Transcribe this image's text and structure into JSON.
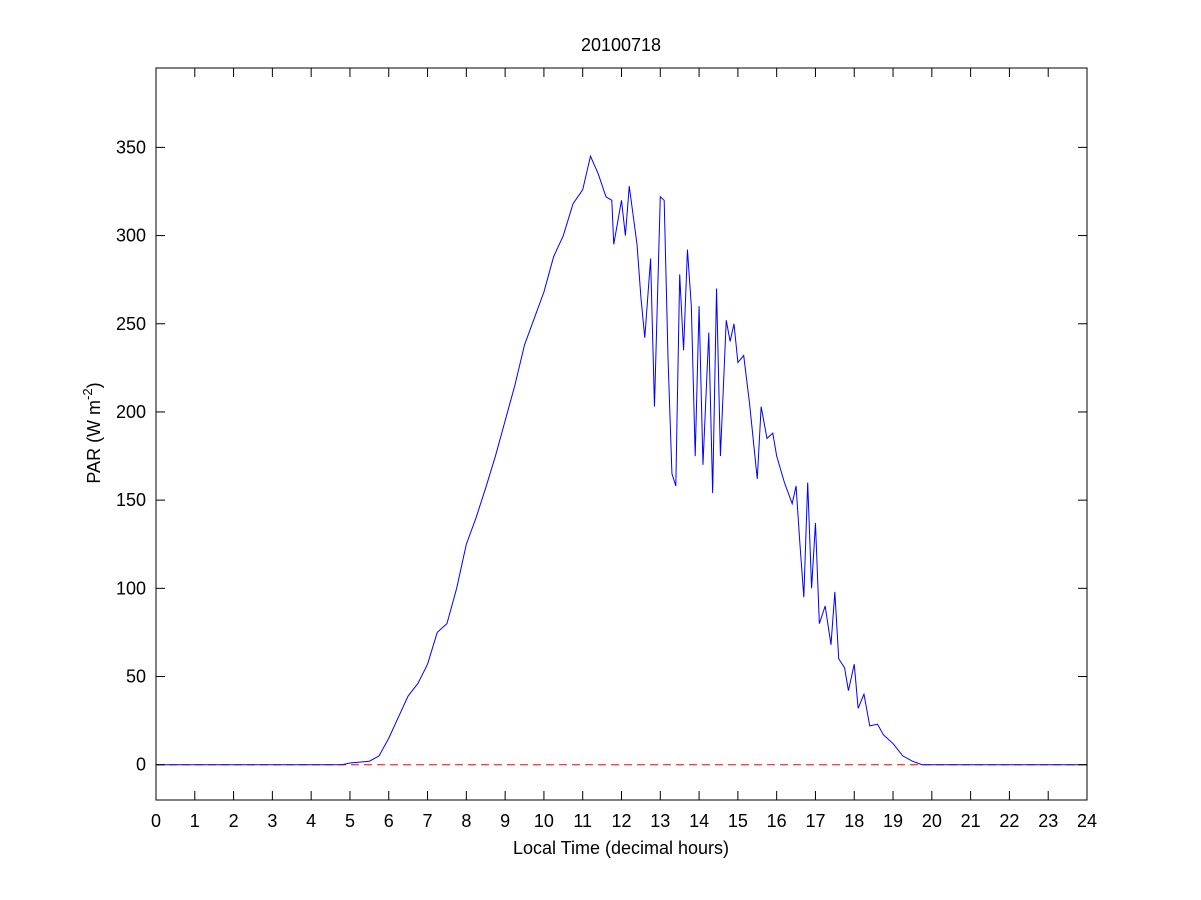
{
  "chart_data": {
    "type": "line",
    "title": "20100718",
    "xlabel": "Local Time (decimal hours)",
    "ylabel": {
      "text": "PAR (W m",
      "superscript": "-2",
      "suffix": ")"
    },
    "x": [
      0,
      4.8,
      5.0,
      5.5,
      5.75,
      6.0,
      6.25,
      6.5,
      6.75,
      7.0,
      7.25,
      7.5,
      7.75,
      8.0,
      8.25,
      8.5,
      8.75,
      9.0,
      9.25,
      9.5,
      9.75,
      10.0,
      10.25,
      10.5,
      10.75,
      11.0,
      11.2,
      11.4,
      11.6,
      11.75,
      11.8,
      12.0,
      12.1,
      12.2,
      12.4,
      12.5,
      12.6,
      12.75,
      12.85,
      13.0,
      13.1,
      13.2,
      13.3,
      13.4,
      13.5,
      13.6,
      13.7,
      13.8,
      13.9,
      14.0,
      14.1,
      14.25,
      14.35,
      14.45,
      14.55,
      14.7,
      14.8,
      14.9,
      15.0,
      15.15,
      15.3,
      15.5,
      15.6,
      15.75,
      15.9,
      16.0,
      16.2,
      16.4,
      16.5,
      16.6,
      16.7,
      16.8,
      16.9,
      17.0,
      17.1,
      17.25,
      17.4,
      17.5,
      17.6,
      17.75,
      17.85,
      18.0,
      18.1,
      18.25,
      18.4,
      18.6,
      18.75,
      19.0,
      19.25,
      19.5,
      19.75,
      24
    ],
    "series": [
      {
        "name": "PAR",
        "color": "#0000ff",
        "values": [
          0,
          0,
          1,
          2,
          5,
          15,
          27,
          39,
          46,
          57,
          75,
          80,
          100,
          125,
          140,
          157,
          175,
          195,
          215,
          238,
          253,
          268,
          288,
          300,
          318,
          326,
          345,
          335,
          322,
          320,
          295,
          320,
          300,
          328,
          295,
          265,
          242,
          287,
          203,
          322,
          320,
          230,
          165,
          158,
          278,
          235,
          292,
          260,
          175,
          260,
          170,
          245,
          154,
          270,
          175,
          252,
          240,
          250,
          228,
          232,
          205,
          162,
          203,
          185,
          188,
          175,
          160,
          148,
          158,
          125,
          95,
          160,
          100,
          137,
          80,
          90,
          68,
          98,
          60,
          55,
          42,
          57,
          32,
          40,
          22,
          23,
          17,
          12,
          5,
          2,
          0,
          0
        ]
      }
    ],
    "reference_line": {
      "value": 0,
      "color": "#ff0000",
      "style": "dashed"
    },
    "xlim": [
      0,
      24
    ],
    "xticks": [
      0,
      1,
      2,
      3,
      4,
      5,
      6,
      7,
      8,
      9,
      10,
      11,
      12,
      13,
      14,
      15,
      16,
      17,
      18,
      19,
      20,
      21,
      22,
      23,
      24
    ],
    "ylim": [
      -20,
      395
    ],
    "yticks": [
      0,
      50,
      100,
      150,
      200,
      250,
      300,
      350
    ],
    "grid": false
  }
}
